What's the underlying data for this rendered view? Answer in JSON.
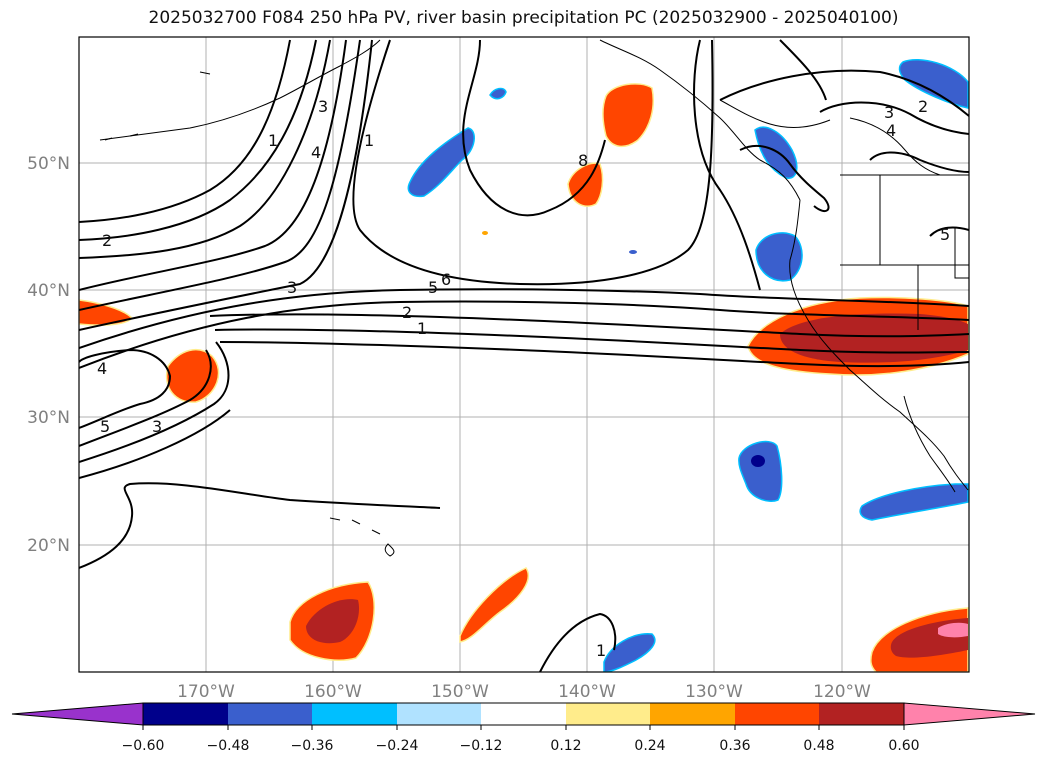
{
  "title": "2025032700 F084 250 hPa PV, river basin precipitation PC (2025032900 - 2025040100)",
  "map": {
    "lon_range": [
      -180,
      -110
    ],
    "lat_range": [
      10,
      60
    ],
    "lat_labels": [
      "50°N",
      "40°N",
      "30°N",
      "20°N"
    ],
    "lon_labels": [
      "170°W",
      "160°W",
      "150°W",
      "140°W",
      "130°W",
      "120°W"
    ],
    "contour_labels": [
      "1",
      "3",
      "4",
      "1",
      "8",
      "2",
      "3",
      "5",
      "6",
      "2",
      "1",
      "4",
      "5",
      "3",
      "3",
      "2",
      "4",
      "5",
      "1"
    ]
  },
  "colorbar": {
    "ticks": [
      "−0.60",
      "−0.48",
      "−0.36",
      "−0.24",
      "−0.12",
      "0.12",
      "0.24",
      "0.36",
      "0.48",
      "0.60"
    ],
    "colors": [
      "#9932cc",
      "#00008b",
      "#3a5fcd",
      "#00bfff",
      "#b0e2ff",
      "#ffffff",
      "#ffec8b",
      "#ffa500",
      "#ff4500",
      "#b22222",
      "#ff82ab"
    ]
  }
}
